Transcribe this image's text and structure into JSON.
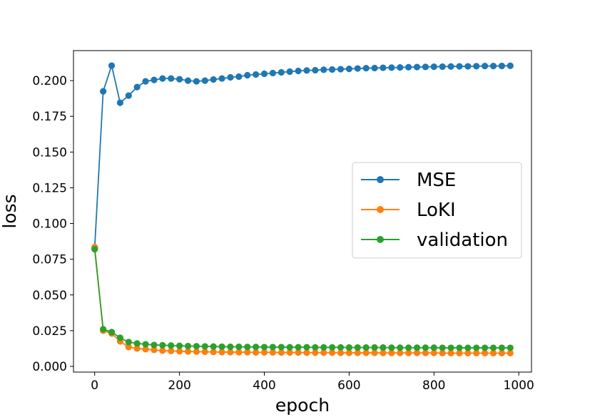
{
  "chart_data": {
    "type": "line",
    "xlabel": "epoch",
    "ylabel": "loss",
    "xlim": [
      -50,
      1030
    ],
    "ylim": [
      -0.004,
      0.221
    ],
    "xticks": [
      0,
      200,
      400,
      600,
      800,
      1000
    ],
    "xtick_labels": [
      "0",
      "200",
      "400",
      "600",
      "800",
      "1000"
    ],
    "yticks": [
      0.0,
      0.025,
      0.05,
      0.075,
      0.1,
      0.125,
      0.15,
      0.175,
      0.2
    ],
    "ytick_labels": [
      "0.000",
      "0.025",
      "0.050",
      "0.075",
      "0.100",
      "0.125",
      "0.150",
      "0.175",
      "0.200"
    ],
    "grid": false,
    "legend_position": "center-right",
    "x": [
      0,
      20,
      40,
      60,
      80,
      100,
      120,
      140,
      160,
      180,
      200,
      220,
      240,
      260,
      280,
      300,
      320,
      340,
      360,
      380,
      400,
      420,
      440,
      460,
      480,
      500,
      520,
      540,
      560,
      580,
      600,
      620,
      640,
      660,
      680,
      700,
      720,
      740,
      760,
      780,
      800,
      820,
      840,
      860,
      880,
      900,
      920,
      940,
      960,
      980
    ],
    "series": [
      {
        "name": "MSE",
        "color": "#1f77b4",
        "values": [
          0.083,
          0.1925,
          0.2105,
          0.1845,
          0.1895,
          0.1955,
          0.1995,
          0.2005,
          0.2015,
          0.2015,
          0.201,
          0.2,
          0.1995,
          0.2,
          0.2008,
          0.2015,
          0.2023,
          0.2028,
          0.2038,
          0.2043,
          0.2048,
          0.2053,
          0.2058,
          0.2063,
          0.2068,
          0.2071,
          0.2073,
          0.2076,
          0.2078,
          0.208,
          0.2082,
          0.2085,
          0.2087,
          0.2088,
          0.209,
          0.2091,
          0.2092,
          0.2094,
          0.2095,
          0.2096,
          0.2097,
          0.2098,
          0.2099,
          0.21,
          0.21,
          0.2101,
          0.2102,
          0.2102,
          0.2103,
          0.2104
        ]
      },
      {
        "name": "LoKI",
        "color": "#ff7f0e",
        "values": [
          0.0835,
          0.025,
          0.023,
          0.0175,
          0.0135,
          0.0125,
          0.012,
          0.0115,
          0.011,
          0.0108,
          0.0106,
          0.0104,
          0.0103,
          0.0102,
          0.0101,
          0.01,
          0.01,
          0.0099,
          0.0099,
          0.0098,
          0.0098,
          0.0098,
          0.0097,
          0.0097,
          0.0097,
          0.0096,
          0.0096,
          0.0096,
          0.0096,
          0.0095,
          0.0095,
          0.0095,
          0.0095,
          0.0095,
          0.0094,
          0.0094,
          0.0094,
          0.0094,
          0.0094,
          0.0094,
          0.0094,
          0.0093,
          0.0093,
          0.0093,
          0.0093,
          0.0093,
          0.0093,
          0.0093,
          0.0093,
          0.0093
        ]
      },
      {
        "name": "validation",
        "color": "#2ca02c",
        "values": [
          0.082,
          0.026,
          0.024,
          0.02,
          0.017,
          0.016,
          0.0155,
          0.015,
          0.0148,
          0.0146,
          0.0144,
          0.0142,
          0.0141,
          0.014,
          0.0139,
          0.0138,
          0.0137,
          0.0137,
          0.0136,
          0.0136,
          0.0135,
          0.0135,
          0.0135,
          0.0134,
          0.0134,
          0.0134,
          0.0133,
          0.0133,
          0.0133,
          0.0133,
          0.0132,
          0.0132,
          0.0132,
          0.0132,
          0.0132,
          0.0131,
          0.0131,
          0.0131,
          0.0131,
          0.0131,
          0.0131,
          0.013,
          0.013,
          0.013,
          0.013,
          0.013,
          0.013,
          0.013,
          0.013,
          0.013
        ]
      }
    ]
  }
}
